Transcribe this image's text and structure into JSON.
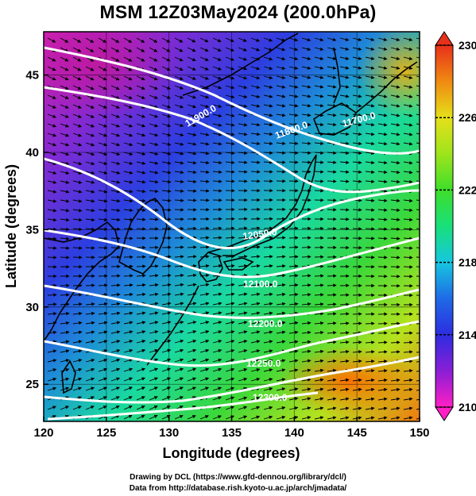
{
  "title": "MSM 12Z03May2024 (200.0hPa)",
  "xlabel": "Longitude (degrees)",
  "ylabel": "Latitude  (degrees)",
  "x_ticks": [
    120,
    125,
    130,
    135,
    140,
    145,
    150
  ],
  "y_ticks": [
    25,
    30,
    35,
    40,
    45
  ],
  "colorbar": {
    "min": 210,
    "max": 230,
    "labels": [
      210,
      214,
      218,
      222,
      226,
      230
    ]
  },
  "contour_labels": [
    "11900.0",
    "11800.0",
    "11700.0",
    "12050.0",
    "12100.0",
    "12200.0",
    "12250.0",
    "12300.0"
  ],
  "credits": [
    "Drawing by DCL (https://www.gfd-dennou.org/library/dcl/)",
    "Data from http://database.rish.kyoto-u.ac.jp/arch/jmadata/"
  ],
  "colors": {
    "contour": "#ffffff",
    "coast": "#000000",
    "vector": "#000000"
  }
}
